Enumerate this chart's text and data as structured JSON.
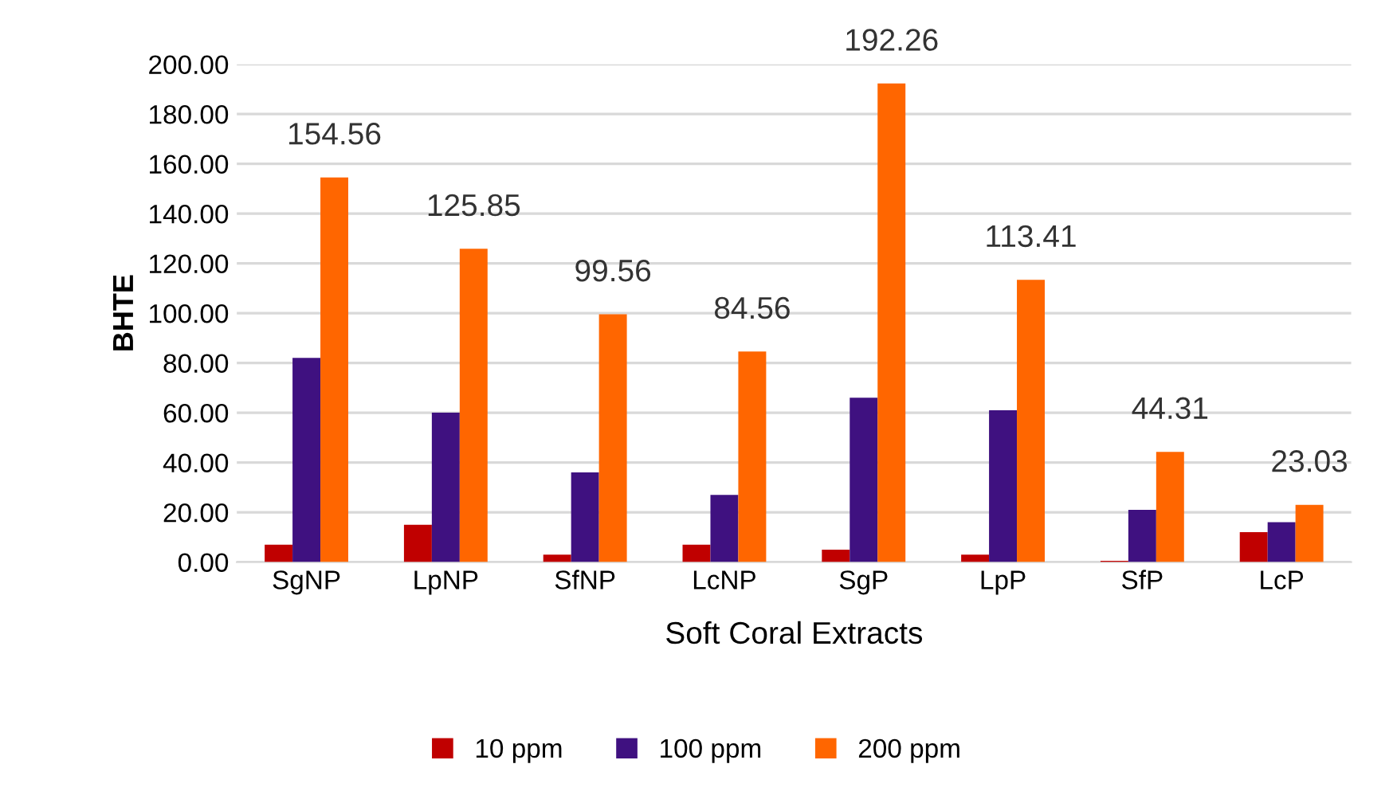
{
  "chart_data": {
    "type": "bar",
    "xlabel": "Soft Coral Extracts",
    "ylabel": "BHTE",
    "categories": [
      "SgNP",
      "LpNP",
      "SfNP",
      "LcNP",
      "SgP",
      "LpP",
      "SfP",
      "LcP"
    ],
    "series": [
      {
        "name": "10 ppm",
        "color": "#c00000",
        "values": [
          7,
          15,
          3,
          7,
          5,
          3,
          0.5,
          12
        ]
      },
      {
        "name": "100 ppm",
        "color": "#3f1180",
        "values": [
          82,
          60,
          36,
          27,
          66,
          61,
          21,
          16
        ]
      },
      {
        "name": "200 ppm",
        "color": "#ff6600",
        "values": [
          154.56,
          125.85,
          99.56,
          84.56,
          192.26,
          113.41,
          44.31,
          23.03
        ],
        "value_labels": [
          "154.56",
          "125.85",
          "99.56",
          "84.56",
          "192.26",
          "113.41",
          "44.31",
          "23.03"
        ]
      }
    ],
    "ylim": [
      0,
      200
    ],
    "yticks": [
      {
        "value": 0,
        "label": "0.00"
      },
      {
        "value": 20,
        "label": "20.00"
      },
      {
        "value": 40,
        "label": "40.00"
      },
      {
        "value": 60,
        "label": "60.00"
      },
      {
        "value": 80,
        "label": "80.00"
      },
      {
        "value": 100,
        "label": "100.00"
      },
      {
        "value": 120,
        "label": "120.00"
      },
      {
        "value": 140,
        "label": "140.00"
      },
      {
        "value": 160,
        "label": "160.00"
      },
      {
        "value": 180,
        "label": "180.00"
      },
      {
        "value": 200,
        "label": "200.00"
      }
    ],
    "grid": "y",
    "legend": "bottom"
  }
}
